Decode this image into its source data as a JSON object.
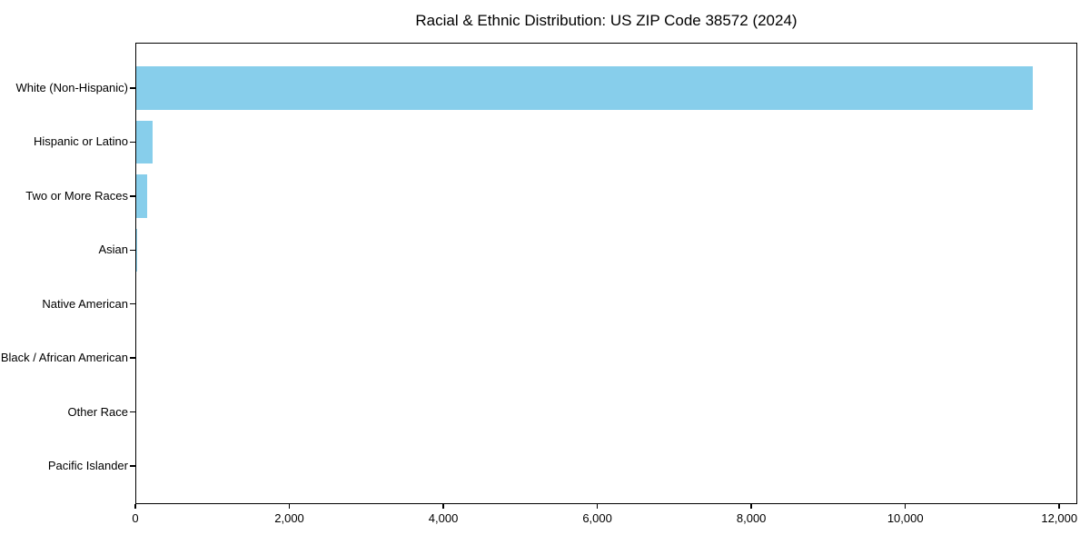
{
  "title": "Racial & Ethnic Distribution: US ZIP Code 38572 (2024)",
  "colors": {
    "bar": "#87ceeb",
    "axis": "#000000",
    "text": "#000000",
    "background": "#ffffff"
  },
  "chart_data": {
    "type": "bar",
    "orientation": "horizontal",
    "title": "Racial & Ethnic Distribution: US ZIP Code 38572 (2024)",
    "xlabel": "",
    "ylabel": "",
    "categories": [
      "White (Non-Hispanic)",
      "Hispanic or Latino",
      "Two or More Races",
      "Asian",
      "Native American",
      "Black / African American",
      "Other Race",
      "Pacific Islander"
    ],
    "values": [
      11650,
      225,
      157,
      24,
      9,
      5,
      2,
      0
    ],
    "bar_color": "#87ceeb",
    "xlim": [
      0,
      12233
    ],
    "xticks": [
      0,
      2000,
      4000,
      6000,
      8000,
      10000,
      12000
    ],
    "xtick_labels": [
      "0",
      "2,000",
      "4,000",
      "6,000",
      "8,000",
      "10,000",
      "12,000"
    ],
    "grid": false,
    "legend": null
  }
}
